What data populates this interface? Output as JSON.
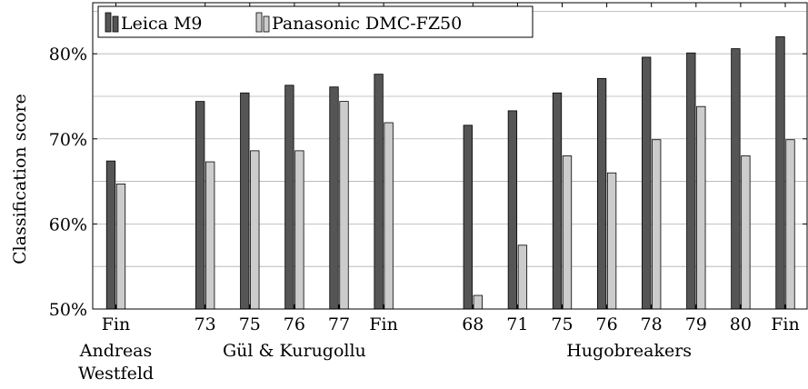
{
  "chart_data": {
    "type": "bar",
    "ylabel": "Classification score",
    "ylim": [
      50,
      86
    ],
    "yticks": [
      50,
      60,
      70,
      80
    ],
    "ytick_labels": [
      "50%",
      "60%",
      "70%",
      "80%"
    ],
    "grid": true,
    "legend_position": "top-left",
    "slots": [
      0,
      2,
      3,
      4,
      5,
      6,
      8,
      9,
      10,
      11,
      12,
      13,
      14,
      15
    ],
    "categories": [
      "Fin",
      "73",
      "75",
      "76",
      "77",
      "Fin",
      "68",
      "71",
      "75",
      "76",
      "78",
      "79",
      "80",
      "Fin"
    ],
    "groups": [
      {
        "label_lines": [
          "Andreas",
          "Westfeld"
        ],
        "start": 0,
        "end": 0
      },
      {
        "label_lines": [
          "Gül & Kurugollu"
        ],
        "start": 1,
        "end": 5
      },
      {
        "label_lines": [
          "Hugobreakers"
        ],
        "start": 6,
        "end": 13
      }
    ],
    "series": [
      {
        "name": "Leica M9",
        "color": "#555555",
        "values": [
          67.4,
          74.4,
          75.4,
          76.3,
          76.1,
          77.6,
          71.6,
          73.3,
          75.4,
          77.1,
          79.6,
          80.1,
          80.6,
          82.0
        ]
      },
      {
        "name": "Panasonic DMC-FZ50",
        "color": "#cccccc",
        "values": [
          64.7,
          67.3,
          68.6,
          68.6,
          74.4,
          71.9,
          51.6,
          57.5,
          68.0,
          66.0,
          69.9,
          73.8,
          68.0,
          69.9
        ]
      }
    ]
  }
}
